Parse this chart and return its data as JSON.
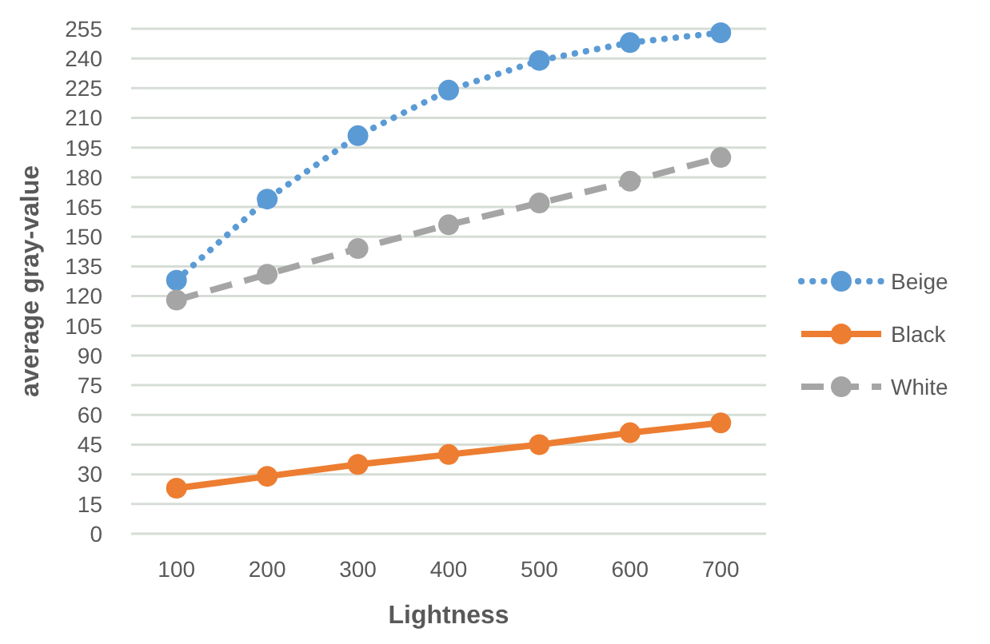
{
  "chart_data": {
    "type": "line",
    "xlabel": "Lightness",
    "ylabel": "average gray-value",
    "categories": [
      "100",
      "200",
      "300",
      "400",
      "500",
      "600",
      "700"
    ],
    "series": [
      {
        "name": "Beige",
        "color": "#5b9bd5",
        "line_style": "dotted",
        "values": [
          128,
          169,
          201,
          224,
          239,
          248,
          253
        ]
      },
      {
        "name": "Black",
        "color": "#ed7d31",
        "line_style": "solid",
        "values": [
          23,
          29,
          35,
          40,
          45,
          51,
          56
        ]
      },
      {
        "name": "White",
        "color": "#a5a5a5",
        "line_style": "dashed",
        "values": [
          118,
          131,
          144,
          156,
          167,
          178,
          190
        ]
      }
    ],
    "ylim": [
      0,
      255
    ],
    "yticks": [
      0,
      15,
      30,
      45,
      60,
      75,
      90,
      105,
      120,
      135,
      150,
      165,
      180,
      195,
      210,
      225,
      240,
      255
    ],
    "grid": "y",
    "legend": "right",
    "marker": "circle"
  }
}
